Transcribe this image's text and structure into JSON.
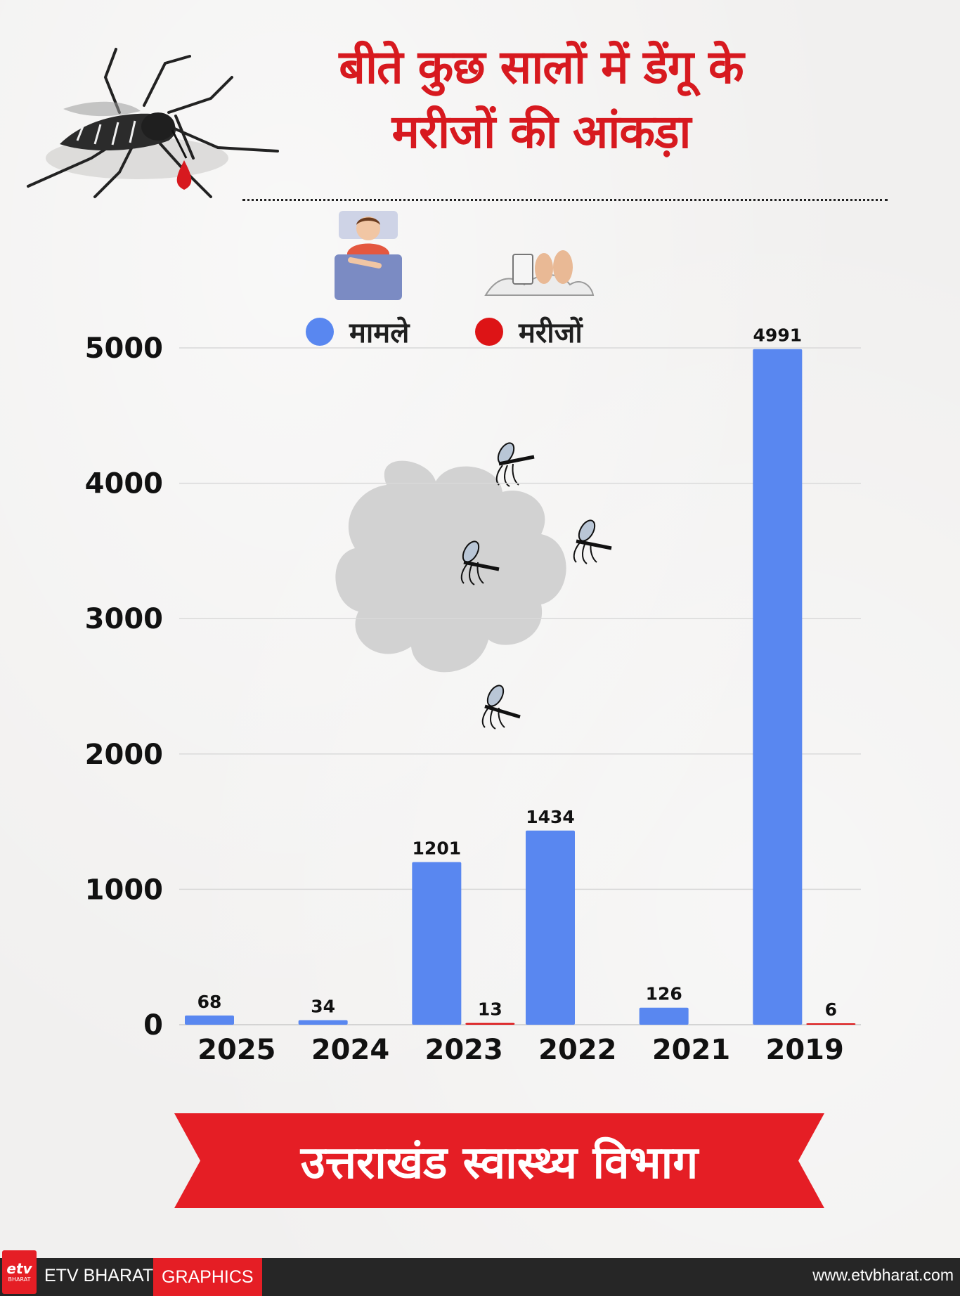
{
  "header": {
    "title_line1": "बीते कुछ सालों में डेंगू के",
    "title_line2": "मरीजों की आंकड़ा"
  },
  "legend": [
    {
      "label": "मामले",
      "color": "#5987f0"
    },
    {
      "label": "मरीजों",
      "color": "#dd1416"
    }
  ],
  "chart_data": {
    "type": "bar",
    "categories": [
      "2025",
      "2024",
      "2023",
      "2022",
      "2021",
      "2019"
    ],
    "series": [
      {
        "name": "मामले",
        "color": "#5987f0",
        "values": [
          68,
          34,
          1201,
          1434,
          126,
          4991
        ],
        "labels": [
          "68",
          "34",
          "1201",
          "1434",
          "126",
          "4991"
        ]
      },
      {
        "name": "मरीजों",
        "color": "#dd1416",
        "values": [
          null,
          null,
          13,
          null,
          null,
          6
        ],
        "labels": [
          "",
          "",
          "13",
          "",
          "",
          "6"
        ]
      }
    ],
    "y_ticks": [
      "0",
      "1000",
      "2000",
      "3000",
      "4000",
      "5000"
    ],
    "ylim": [
      0,
      5000
    ],
    "grid": true,
    "legend_position": "top"
  },
  "banner": {
    "text": "उत्तराखंड स्वास्थ्य विभाग"
  },
  "footer": {
    "logo_text": "etv",
    "logo_sub": "BHARAT",
    "brand": "ETV BHARAT",
    "tag": "GRAPHICS",
    "url": "www.etvbharat.com"
  }
}
